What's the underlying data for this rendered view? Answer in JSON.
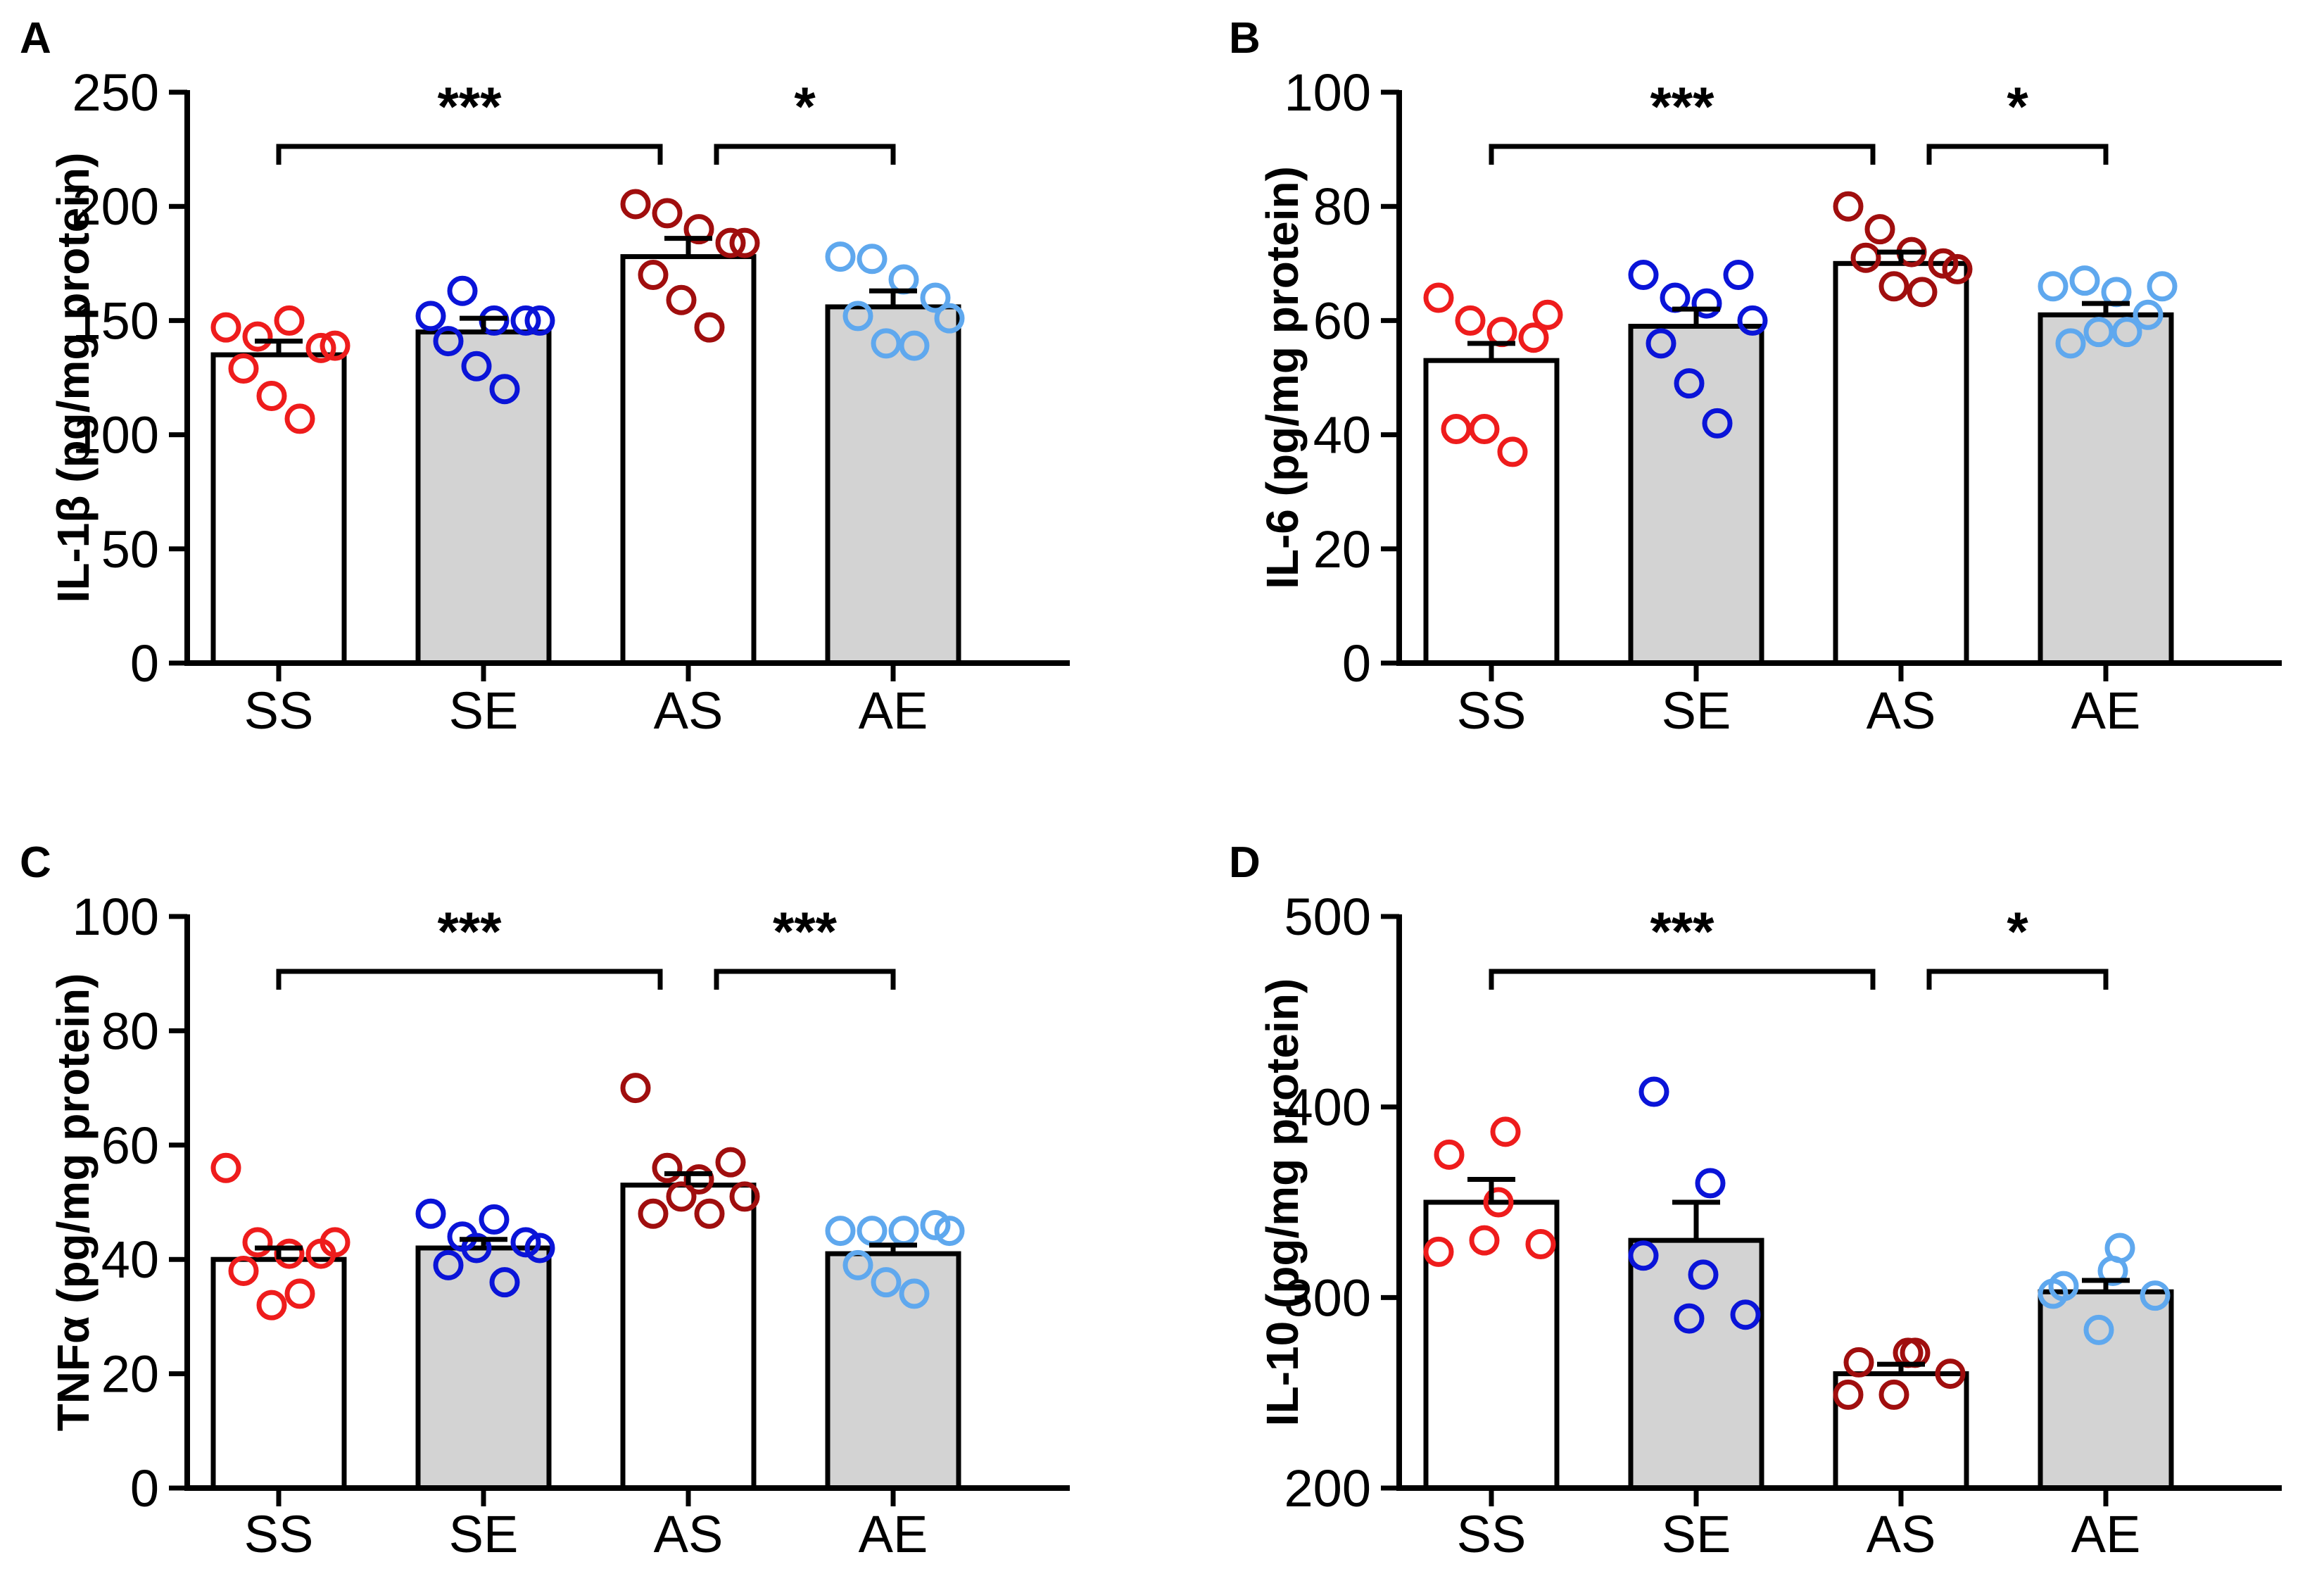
{
  "chart_data": [
    {
      "type": "bar",
      "panel": "A",
      "ylabel": "IL-1β (pg/mg protein)",
      "ylim": [
        0,
        250
      ],
      "yticks": [
        0,
        50,
        100,
        150,
        200,
        250
      ],
      "categories": [
        "SS",
        "SE",
        "AS",
        "AE"
      ],
      "values": [
        135,
        145,
        178,
        156
      ],
      "sem": [
        6,
        6,
        8,
        7
      ],
      "points": [
        [
          147,
          143,
          150,
          138,
          139,
          129,
          117,
          107
        ],
        [
          152,
          163,
          150,
          150,
          150,
          141,
          130,
          120
        ],
        [
          201,
          197,
          190,
          184,
          184,
          170,
          159,
          147
        ],
        [
          178,
          177,
          168,
          160,
          151,
          152,
          140,
          139
        ]
      ],
      "significance": [
        {
          "from": "SS",
          "to": "AS",
          "label": "***"
        },
        {
          "from": "AS",
          "to": "AE",
          "label": "*"
        }
      ]
    },
    {
      "type": "bar",
      "panel": "B",
      "ylabel": "IL-6 (pg/mg protein)",
      "ylim": [
        0,
        100
      ],
      "yticks": [
        0,
        20,
        40,
        60,
        80,
        100
      ],
      "categories": [
        "SS",
        "SE",
        "AS",
        "AE"
      ],
      "values": [
        53,
        59,
        70,
        61
      ],
      "sem": [
        3,
        3,
        2,
        2
      ],
      "points": [
        [
          64,
          60,
          58,
          57,
          61,
          41,
          41,
          37
        ],
        [
          68,
          64,
          63,
          68,
          60,
          56,
          49,
          42
        ],
        [
          80,
          76,
          72,
          70,
          69,
          71,
          66,
          65
        ],
        [
          66,
          67,
          65,
          61,
          66,
          56,
          58,
          58
        ]
      ],
      "significance": [
        {
          "from": "SS",
          "to": "AS",
          "label": "***"
        },
        {
          "from": "AS",
          "to": "AE",
          "label": "*"
        }
      ]
    },
    {
      "type": "bar",
      "panel": "C",
      "ylabel": "TNFα (pg/mg protein)",
      "ylim": [
        0,
        100
      ],
      "yticks": [
        0,
        20,
        40,
        60,
        80,
        100
      ],
      "categories": [
        "SS",
        "SE",
        "AS",
        "AE"
      ],
      "values": [
        40,
        42,
        53,
        41
      ],
      "sem": [
        2,
        1.5,
        2,
        1.5
      ],
      "points": [
        [
          56,
          43,
          41,
          41,
          43,
          38,
          32,
          34
        ],
        [
          48,
          44,
          47,
          43,
          42,
          39,
          42,
          36
        ],
        [
          70,
          56,
          54,
          57,
          51,
          48,
          51,
          48
        ],
        [
          45,
          45,
          45,
          46,
          45,
          39,
          36,
          34
        ]
      ],
      "significance": [
        {
          "from": "SS",
          "to": "AS",
          "label": "***"
        },
        {
          "from": "AS",
          "to": "AE",
          "label": "***"
        }
      ]
    },
    {
      "type": "bar",
      "panel": "D",
      "ylabel": "IL-10 (pg/mg protein)",
      "ylim": [
        200,
        500
      ],
      "yticks": [
        200,
        300,
        400,
        500
      ],
      "categories": [
        "SS",
        "SE",
        "AS",
        "AE"
      ],
      "values": [
        350,
        330,
        260,
        303
      ],
      "sem": [
        12,
        20,
        5,
        6
      ],
      "points": [
        [
          375,
          387,
          350,
          324,
          330,
          328
        ],
        [
          408,
          360,
          312,
          322,
          289,
          291
        ],
        [
          266,
          271,
          271,
          249,
          249,
          260
        ],
        [
          306,
          326,
          314,
          302,
          283,
          301
        ]
      ],
      "significance": [
        {
          "from": "SS",
          "to": "AS",
          "label": "***"
        },
        {
          "from": "AS",
          "to": "AE",
          "label": "*"
        }
      ]
    }
  ],
  "colors": {
    "SS": "#ee1c1c",
    "SE": "#0a14d8",
    "AS": "#a00e0e",
    "AE": "#5fa8ee",
    "bar_white": "#ffffff",
    "bar_gray": "#d3d3d3",
    "axis": "#000000"
  }
}
